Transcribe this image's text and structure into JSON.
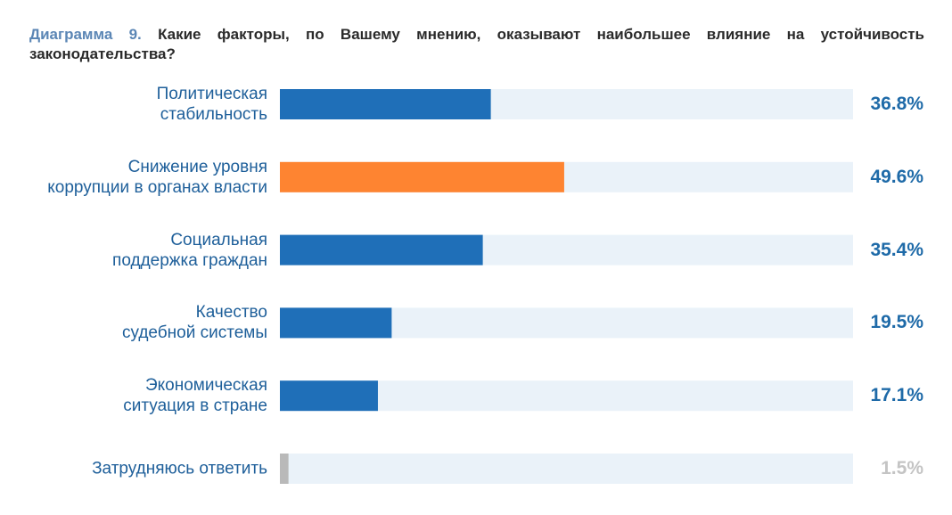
{
  "chart_data": {
    "type": "hbar",
    "title_prefix": "Диаграмма 9.",
    "title": "Какие факторы, по Вашему мнению, оказывают наибольшее влияние на устойчивость законодательства?",
    "categories": [
      "Политическая\nстабильность",
      "Снижение уровня\nкоррупции в органах власти",
      "Социальная\nподдержка граждан",
      "Качество\nсудебной системы",
      "Экономическая\nситуация в стране",
      "Затрудняюсь ответить"
    ],
    "values": [
      36.8,
      49.6,
      35.4,
      19.5,
      17.1,
      1.5
    ],
    "value_labels": [
      "36.8%",
      "49.6%",
      "35.4%",
      "19.5%",
      "17.1%",
      "1.5%"
    ],
    "colors": [
      "#1f6fb8",
      "#fe8431",
      "#1f6fb8",
      "#1f6fb8",
      "#1f6fb8",
      "#b9b9b9"
    ],
    "label_colors": [
      "#1e6aa8",
      "#1e6aa8",
      "#1e6aa8",
      "#1e6aa8",
      "#1e6aa8",
      "#c4c4c4"
    ],
    "track_color": "#eaf2f9",
    "xlim": [
      0,
      100
    ]
  }
}
